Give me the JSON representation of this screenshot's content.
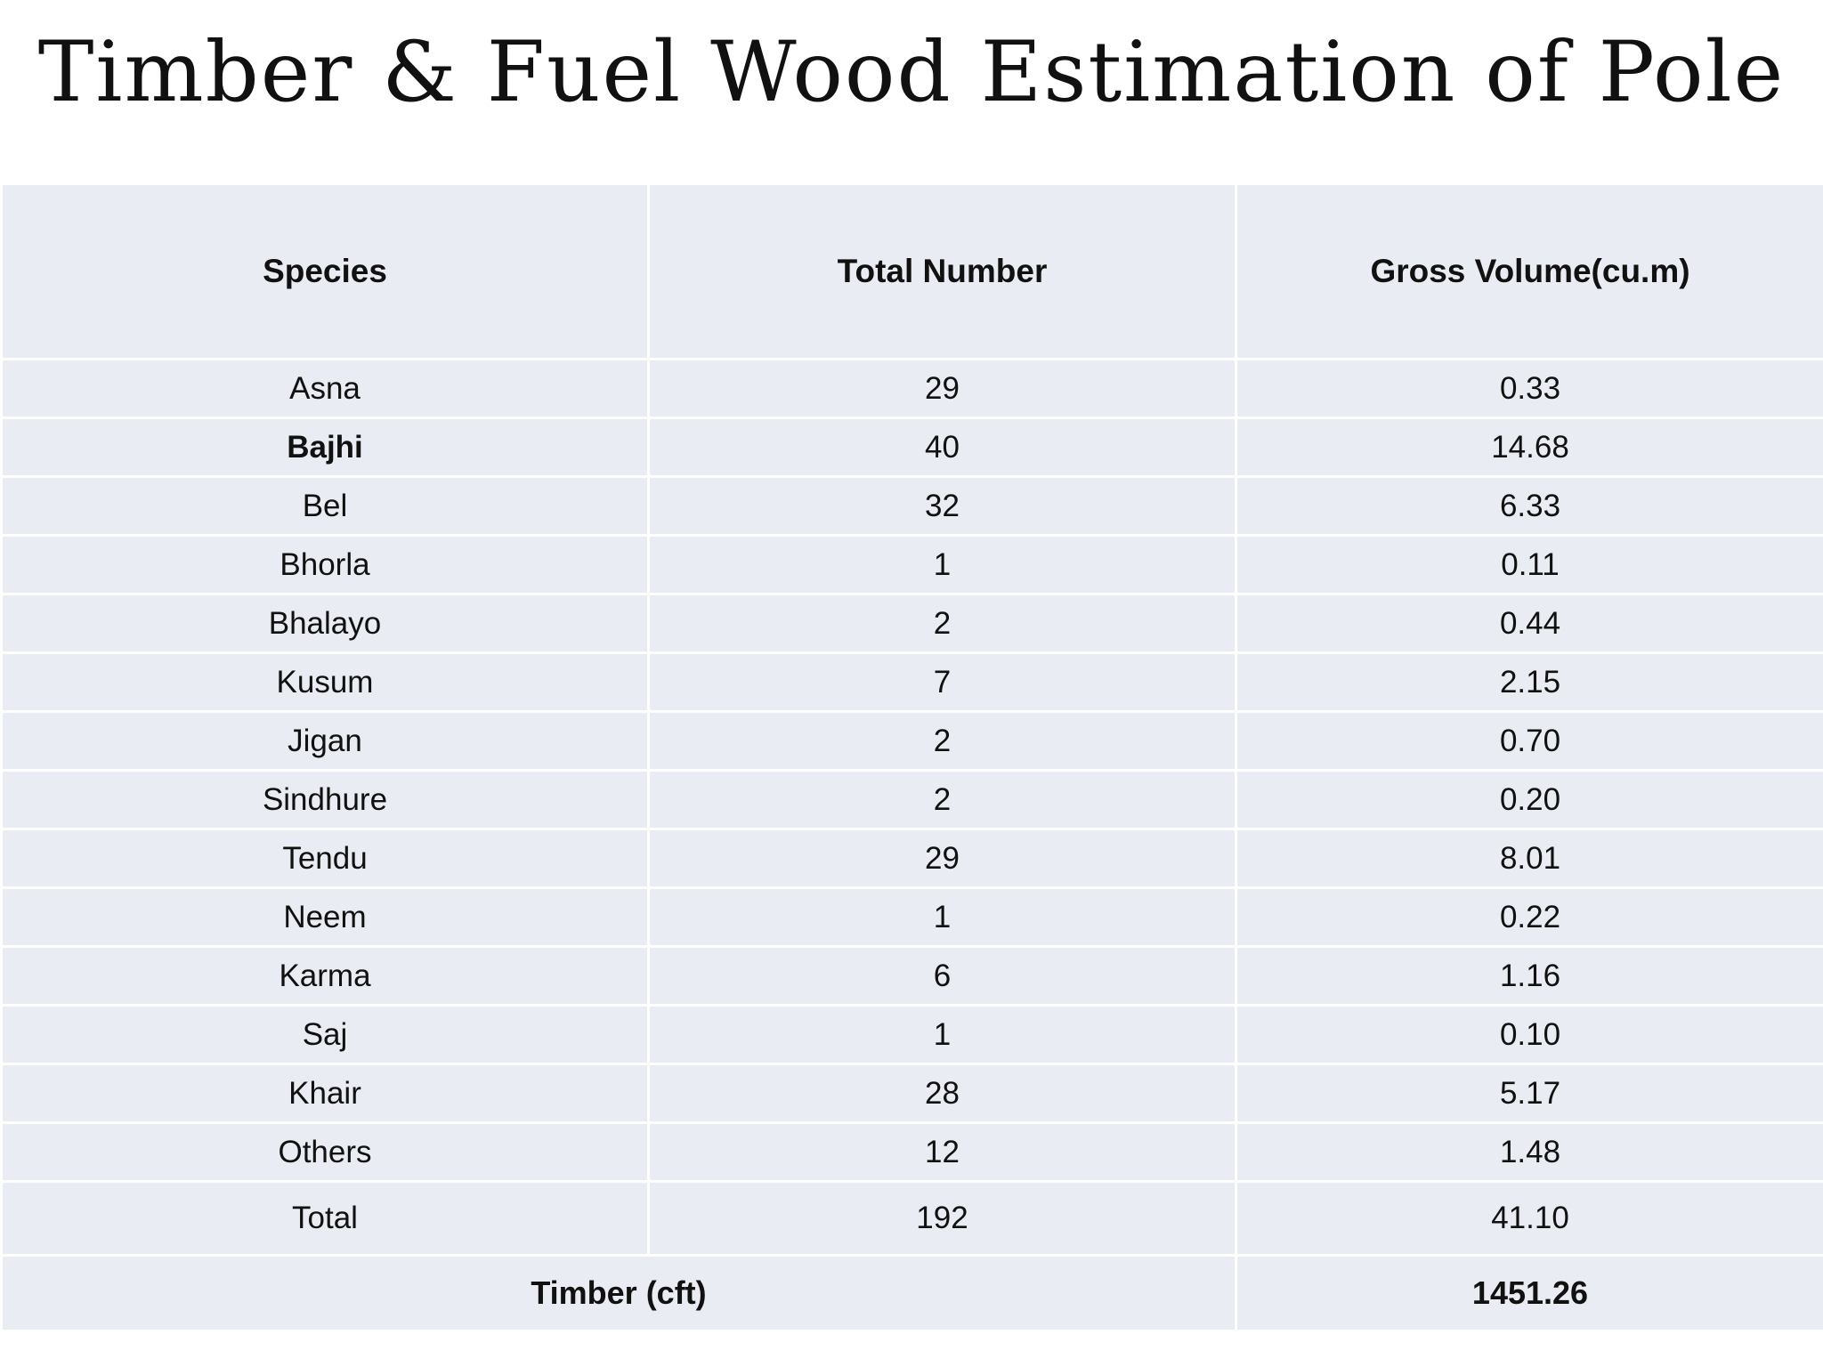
{
  "title": "Timber & Fuel Wood Estimation of Pole",
  "table": {
    "headers": [
      "Species",
      "Total Number",
      "Gross Volume(cu.m)"
    ],
    "rows": [
      {
        "species": "Asna",
        "number": "29",
        "volume": "0.33"
      },
      {
        "species": "Bajhi",
        "number": "40",
        "volume": "14.68"
      },
      {
        "species": "Bel",
        "number": "32",
        "volume": "6.33"
      },
      {
        "species": "Bhorla",
        "number": "1",
        "volume": "0.11"
      },
      {
        "species": "Bhalayo",
        "number": "2",
        "volume": "0.44"
      },
      {
        "species": "Kusum",
        "number": "7",
        "volume": "2.15"
      },
      {
        "species": "Jigan",
        "number": "2",
        "volume": "0.70"
      },
      {
        "species": "Sindhure",
        "number": "2",
        "volume": "0.20"
      },
      {
        "species": "Tendu",
        "number": "29",
        "volume": "8.01"
      },
      {
        "species": "Neem",
        "number": "1",
        "volume": "0.22"
      },
      {
        "species": "Karma",
        "number": "6",
        "volume": "1.16"
      },
      {
        "species": "Saj",
        "number": "1",
        "volume": "0.10"
      },
      {
        "species": "Khair",
        "number": "28",
        "volume": "5.17"
      },
      {
        "species": "Others",
        "number": "12",
        "volume": "1.48"
      }
    ],
    "total": {
      "label": "Total",
      "number": "192",
      "volume": "41.10"
    },
    "timber": {
      "label": "Timber (cft)",
      "value": "1451.26"
    }
  }
}
